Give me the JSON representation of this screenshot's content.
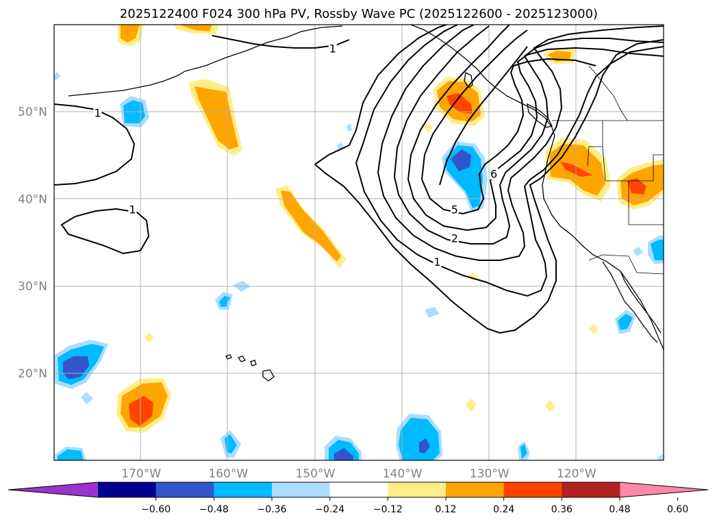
{
  "title": "2025122400 F024 300 hPa PV, Rossby Wave PC (2025122600 - 2025123000)",
  "map": {
    "extent": {
      "lon_min": -180,
      "lon_max": -110,
      "lat_min": 10,
      "lat_max": 60
    },
    "projection": "PlateCarree",
    "gridlines": true,
    "lat_ticks": [
      {
        "value": 50,
        "label": "50°N"
      },
      {
        "value": 40,
        "label": "40°N"
      },
      {
        "value": 30,
        "label": "30°N"
      },
      {
        "value": 20,
        "label": "20°N"
      }
    ],
    "lon_ticks": [
      {
        "value": -170,
        "label": "170°W"
      },
      {
        "value": -160,
        "label": "160°W"
      },
      {
        "value": -150,
        "label": "150°W"
      },
      {
        "value": -140,
        "label": "140°W"
      },
      {
        "value": -130,
        "label": "130°W"
      },
      {
        "value": -120,
        "label": "120°W"
      }
    ],
    "contour_labels": [
      {
        "text": "1",
        "lon": -148,
        "lat": 57.3
      },
      {
        "text": "1",
        "lon": -175,
        "lat": 49.9
      },
      {
        "text": "1",
        "lon": -171,
        "lat": 38.8
      },
      {
        "text": "1",
        "lon": -136,
        "lat": 32.8
      },
      {
        "text": "2",
        "lon": -134,
        "lat": 35.5
      },
      {
        "text": "5",
        "lon": -134,
        "lat": 38.8
      },
      {
        "text": "6",
        "lon": -129.5,
        "lat": 42.9
      }
    ]
  },
  "colorbar": {
    "ticks": [
      "−0.60",
      "−0.48",
      "−0.36",
      "−0.24",
      "−0.12",
      "0.12",
      "0.24",
      "0.36",
      "0.48",
      "0.60"
    ],
    "colors": [
      "#9933cc",
      "#000090",
      "#3355cc",
      "#00bbff",
      "#aaddff",
      "#ffffff",
      "#ffee88",
      "#ffa500",
      "#ff4400",
      "#b22222",
      "#ff88aa"
    ]
  }
}
